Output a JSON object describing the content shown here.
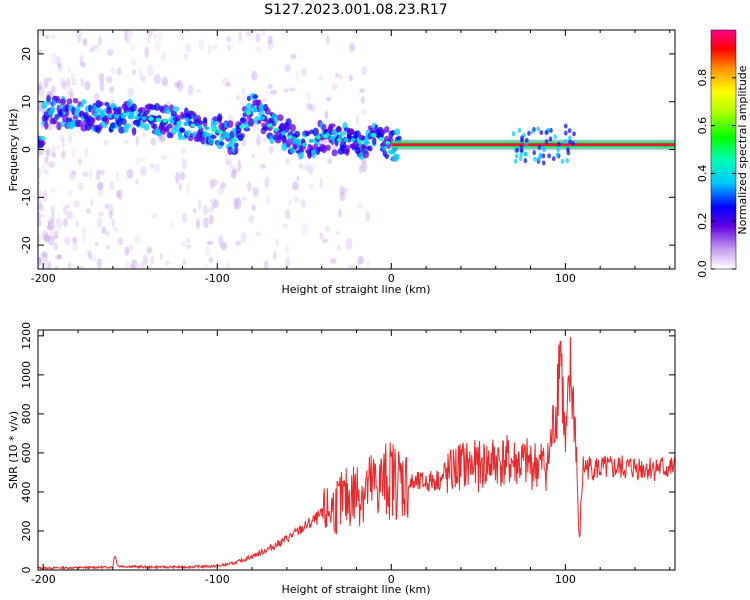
{
  "figure": {
    "title": "S127.2023.001.08.23.R17"
  },
  "chart_data": [
    {
      "type": "heatmap",
      "xlabel": "Height of straight line (km)",
      "ylabel": "Frequency (Hz)",
      "xlim": [
        -203,
        163
      ],
      "ylim": [
        -25,
        25
      ],
      "xticks": [
        -200,
        -100,
        0,
        100
      ],
      "yticks": [
        -20,
        -10,
        0,
        10,
        20
      ],
      "ridge": {
        "x": [
          -200,
          -180,
          -160,
          -140,
          -120,
          -100,
          -90,
          -80,
          -70,
          -60,
          -50,
          -40,
          -30,
          -20,
          -15,
          -10,
          -5,
          0,
          10,
          20,
          40,
          60,
          80,
          95,
          100,
          105,
          163
        ],
        "y": [
          8,
          7.5,
          7,
          6.5,
          5.5,
          4,
          2,
          9,
          5,
          3,
          1,
          3,
          2,
          2,
          1,
          3,
          2,
          1,
          1,
          1,
          1,
          1,
          1,
          1,
          2,
          1,
          1
        ]
      },
      "colorbar": {
        "label": "Normalized spectral amplitude",
        "range": [
          0,
          1
        ],
        "ticks": [
          0.0,
          0.2,
          0.4,
          0.6,
          0.8
        ],
        "tick_labels": [
          "0.0",
          "0.2",
          "0.4",
          "0.6",
          "0.8"
        ]
      },
      "grid": false
    },
    {
      "type": "line",
      "xlabel": "Height of straight line (km)",
      "ylabel": "SNR (10 * v/v)",
      "xlim": [
        -203,
        163
      ],
      "ylim": [
        0,
        1230
      ],
      "xticks": [
        -200,
        -100,
        0,
        100
      ],
      "yticks": [
        0,
        200,
        400,
        600,
        800,
        1000,
        1200
      ],
      "series": [
        {
          "color": "#e8282b",
          "x": [
            -203,
            -180,
            -160,
            -159,
            -157,
            -140,
            -120,
            -100,
            -90,
            -80,
            -70,
            -60,
            -50,
            -40,
            -30,
            -20,
            -10,
            0,
            10,
            20,
            30,
            40,
            50,
            60,
            70,
            80,
            90,
            95,
            97,
            100,
            103,
            106,
            108,
            110,
            120,
            140,
            163
          ],
          "y": [
            10,
            12,
            15,
            80,
            20,
            15,
            15,
            20,
            35,
            70,
            110,
            160,
            220,
            280,
            340,
            400,
            430,
            470,
            440,
            450,
            470,
            540,
            530,
            560,
            550,
            540,
            540,
            850,
            1200,
            600,
            1000,
            700,
            110,
            530,
            520,
            525,
            520
          ]
        }
      ],
      "grid": false
    }
  ]
}
